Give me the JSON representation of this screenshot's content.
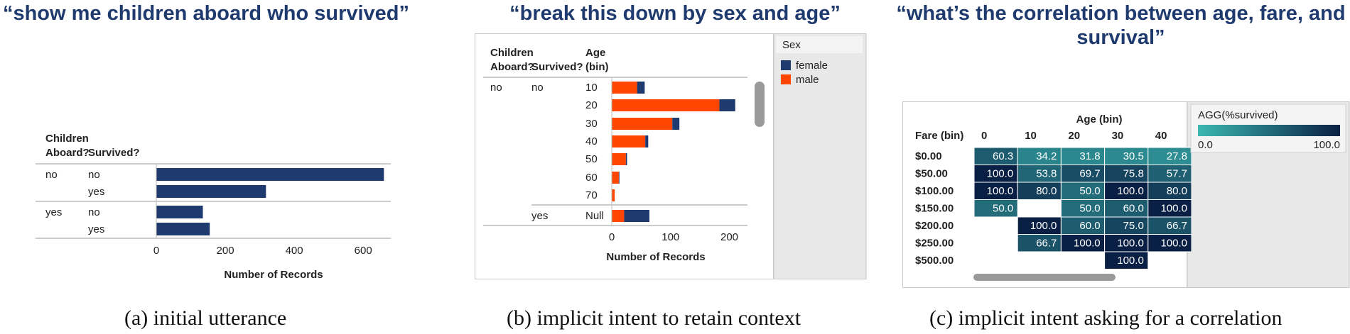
{
  "panels": [
    {
      "utterance": "“show me children aboard who survived”",
      "caption": "(a)  initial utterance"
    },
    {
      "utterance": "“break this down by sex and age”",
      "caption": "(b)  implicit intent to retain context"
    },
    {
      "utterance": "“what’s the correlation between age, fare, and survival”",
      "caption": "(c)  implicit intent asking for a correlation"
    }
  ],
  "chart_data": [
    {
      "type": "bar",
      "orientation": "horizontal",
      "row_headers": [
        "Children Aboard?",
        "Survived?"
      ],
      "rows": [
        {
          "children_aboard": "no",
          "survived": "no",
          "value": 660
        },
        {
          "children_aboard": "",
          "survived": "yes",
          "value": 318
        },
        {
          "children_aboard": "yes",
          "survived": "no",
          "value": 135
        },
        {
          "children_aboard": "",
          "survived": "yes",
          "value": 155
        }
      ],
      "xlabel": "Number of Records",
      "xticks": [
        0,
        200,
        400,
        600
      ],
      "xlim": [
        0,
        680
      ],
      "color": "#1f3a6e"
    },
    {
      "type": "bar",
      "orientation": "horizontal",
      "stacked": true,
      "row_headers": [
        "Children Aboard?",
        "Survived?",
        "Age (bin)"
      ],
      "rows": [
        {
          "children_aboard": "no",
          "survived": "no",
          "age": "10",
          "male": 43,
          "female": 13
        },
        {
          "children_aboard": "",
          "survived": "",
          "age": "20",
          "male": 183,
          "female": 27
        },
        {
          "children_aboard": "",
          "survived": "",
          "age": "30",
          "male": 103,
          "female": 12
        },
        {
          "children_aboard": "",
          "survived": "",
          "age": "40",
          "male": 57,
          "female": 5
        },
        {
          "children_aboard": "",
          "survived": "",
          "age": "50",
          "male": 24,
          "female": 2
        },
        {
          "children_aboard": "",
          "survived": "",
          "age": "60",
          "male": 12,
          "female": 1
        },
        {
          "children_aboard": "",
          "survived": "",
          "age": "70",
          "male": 5,
          "female": 0
        },
        {
          "children_aboard": "",
          "survived": "yes",
          "age": "Null",
          "male": 21,
          "female": 43
        }
      ],
      "xlabel": "Number of Records",
      "xticks": [
        0,
        100,
        200
      ],
      "xlim": [
        0,
        232
      ],
      "legend": {
        "title": "Sex",
        "items": [
          {
            "name": "female",
            "color": "#1f3a6e"
          },
          {
            "name": "male",
            "color": "#ff4500"
          }
        ]
      },
      "legend_position": "right"
    },
    {
      "type": "heatmap",
      "title_x": "Age (bin)",
      "row_header": "Fare (bin)",
      "x": [
        "0",
        "10",
        "20",
        "30",
        "40"
      ],
      "y": [
        "$0.00",
        "$50.00",
        "$100.00",
        "$150.00",
        "$200.00",
        "$250.00",
        "$500.00"
      ],
      "values": [
        [
          60.3,
          34.2,
          31.8,
          30.5,
          27.8
        ],
        [
          100.0,
          53.8,
          69.7,
          75.8,
          57.7
        ],
        [
          100.0,
          80.0,
          50.0,
          100.0,
          80.0
        ],
        [
          50.0,
          null,
          50.0,
          60.0,
          100.0
        ],
        [
          null,
          100.0,
          60.0,
          75.0,
          66.7
        ],
        [
          null,
          66.7,
          100.0,
          100.0,
          100.0
        ],
        [
          null,
          null,
          null,
          100.0,
          null
        ]
      ],
      "legend": {
        "title": "AGG(%survived)",
        "min_label": "0.0",
        "max_label": "100.0",
        "min_color": "#3bb8b0",
        "max_color": "#0a1f44"
      },
      "legend_position": "right"
    }
  ]
}
